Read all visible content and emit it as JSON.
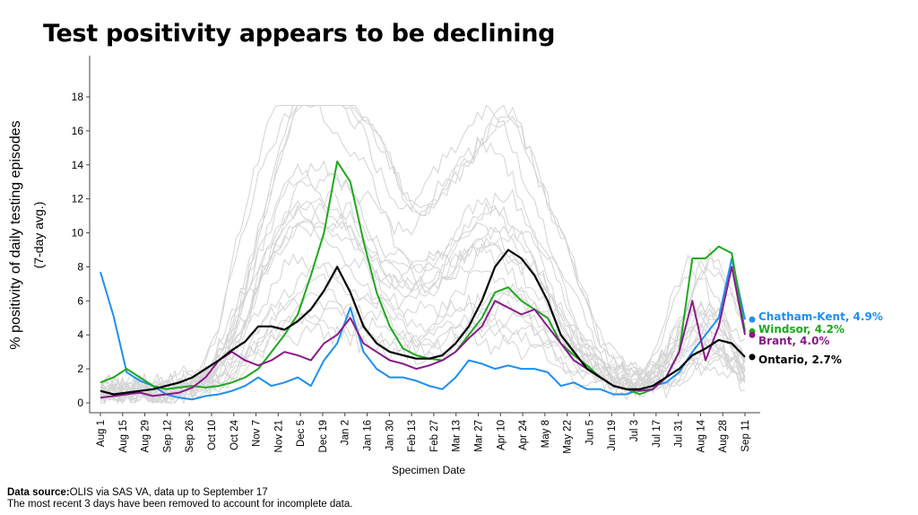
{
  "title": "Test positivity appears to be declining",
  "footer": {
    "source_label": "Data source:",
    "source_text": "OLIS via SAS VA, data up to September 17",
    "note": "The most recent 3 days have been removed to account for incomplete data."
  },
  "chart_data": {
    "type": "line",
    "ylabel": "% positivity of daily testing episodes",
    "ylabel_sub": "(7-day avg.)",
    "xlabel": "Specimen Date",
    "ylim": [
      0,
      18
    ],
    "yticks": [
      0,
      2,
      4,
      6,
      8,
      10,
      12,
      14,
      16,
      18
    ],
    "x_start": "Aug 1",
    "x_end": "Sep 11",
    "xtick_labels": [
      "Aug 1",
      "Aug 15",
      "Aug 29",
      "Sep 12",
      "Sep 26",
      "Oct 10",
      "Oct 24",
      "Nov 7",
      "Nov 21",
      "Dec 5",
      "Dec 19",
      "Jan 2",
      "Jan 16",
      "Jan 30",
      "Feb 13",
      "Feb 27",
      "Mar 13",
      "Mar 27",
      "Apr 10",
      "Apr 24",
      "May 8",
      "May 22",
      "Jun 5",
      "Jun 19",
      "Jul 3",
      "Jul 17",
      "Jul 31",
      "Aug 14",
      "Aug 28",
      "Sep 11"
    ],
    "legend": "end labels at right",
    "background_series_color": "#d4d4d4",
    "series": [
      {
        "name": "Chatham-Kent",
        "end_label": "Chatham-Kent, 4.9%",
        "color": "#1f8ff0",
        "values": [
          7.7,
          5.1,
          1.8,
          1.3,
          1.0,
          0.5,
          0.3,
          0.2,
          0.4,
          0.5,
          0.7,
          1.0,
          1.5,
          1.0,
          1.2,
          1.5,
          1.0,
          2.5,
          3.5,
          5.6,
          3.0,
          2.0,
          1.5,
          1.5,
          1.3,
          1.0,
          0.8,
          1.5,
          2.5,
          2.3,
          2.0,
          2.2,
          2.0,
          2.0,
          1.8,
          1.0,
          1.2,
          0.8,
          0.8,
          0.5,
          0.5,
          0.8,
          1.0,
          1.2,
          1.8,
          3.0,
          4.0,
          5.0,
          8.5,
          4.9
        ]
      },
      {
        "name": "Windsor",
        "end_label": "Windsor, 4.2%",
        "color": "#1da81d",
        "values": [
          1.2,
          1.5,
          2.0,
          1.5,
          1.0,
          0.8,
          0.9,
          1.0,
          0.9,
          1.0,
          1.2,
          1.5,
          2.0,
          3.0,
          4.0,
          5.2,
          7.5,
          10.0,
          14.2,
          13.0,
          9.5,
          6.5,
          4.5,
          3.2,
          2.8,
          2.6,
          2.5,
          3.0,
          4.0,
          5.0,
          6.5,
          6.8,
          6.0,
          5.5,
          5.0,
          3.5,
          2.8,
          2.2,
          1.5,
          1.0,
          0.8,
          0.5,
          0.8,
          1.5,
          3.0,
          8.5,
          8.5,
          9.2,
          8.8,
          4.2
        ]
      },
      {
        "name": "Brant",
        "end_label": "Brant, 4.0%",
        "color": "#8a1a8a",
        "values": [
          0.3,
          0.4,
          0.5,
          0.6,
          0.4,
          0.5,
          0.6,
          0.9,
          1.5,
          2.5,
          3.0,
          2.5,
          2.2,
          2.5,
          3.0,
          2.8,
          2.5,
          3.5,
          4.0,
          5.0,
          3.5,
          3.0,
          2.5,
          2.3,
          2.0,
          2.2,
          2.5,
          3.0,
          3.8,
          4.5,
          6.0,
          5.6,
          5.2,
          5.5,
          4.5,
          3.5,
          2.5,
          2.0,
          1.5,
          1.0,
          0.8,
          0.7,
          0.8,
          1.5,
          3.0,
          6.0,
          2.5,
          4.5,
          8.0,
          4.0
        ]
      },
      {
        "name": "Ontario",
        "end_label": "Ontario, 2.7%",
        "color": "#000000",
        "values": [
          0.7,
          0.5,
          0.6,
          0.7,
          0.8,
          1.0,
          1.2,
          1.5,
          2.0,
          2.5,
          3.1,
          3.6,
          4.5,
          4.5,
          4.3,
          4.8,
          5.5,
          6.6,
          8.0,
          6.5,
          4.5,
          3.5,
          3.0,
          2.8,
          2.6,
          2.6,
          2.8,
          3.5,
          4.5,
          6.0,
          8.0,
          9.0,
          8.5,
          7.5,
          6.0,
          4.0,
          3.0,
          2.0,
          1.5,
          1.0,
          0.8,
          0.8,
          1.0,
          1.5,
          2.0,
          2.8,
          3.2,
          3.7,
          3.5,
          2.7
        ]
      }
    ]
  }
}
